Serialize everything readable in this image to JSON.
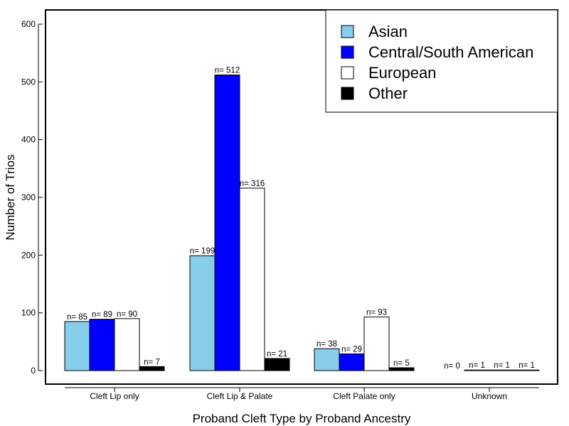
{
  "chart_data": {
    "type": "bar",
    "categories": [
      "Cleft Lip only",
      "Cleft Lip & Palate",
      "Cleft Palate only",
      "Unknown"
    ],
    "series": [
      {
        "name": "Asian",
        "color": "#87CEEB",
        "values": [
          85,
          199,
          38,
          0
        ],
        "labels": [
          "n= 85",
          "n= 199",
          "n= 38",
          "n= 0"
        ]
      },
      {
        "name": "Central/South American",
        "color": "#0000FF",
        "values": [
          89,
          512,
          29,
          1
        ],
        "labels": [
          "n= 89",
          "n= 512",
          "n= 29",
          "n= 1"
        ]
      },
      {
        "name": "European",
        "color": "#FFFFFF",
        "values": [
          90,
          316,
          93,
          1
        ],
        "labels": [
          "n= 90",
          "n= 316",
          "n= 93",
          "n= 1"
        ]
      },
      {
        "name": "Other",
        "color": "#000000",
        "values": [
          7,
          21,
          5,
          1
        ],
        "labels": [
          "n= 7",
          "n= 21",
          "n= 5",
          "n= 1"
        ]
      }
    ],
    "xlabel": "Proband Cleft Type by Proband Ancestry",
    "ylabel": "Number of Trios",
    "ylim": [
      0,
      600
    ],
    "yticks": [
      0,
      100,
      200,
      300,
      400,
      500,
      600
    ],
    "legend_position": "top-right",
    "grid": false
  }
}
